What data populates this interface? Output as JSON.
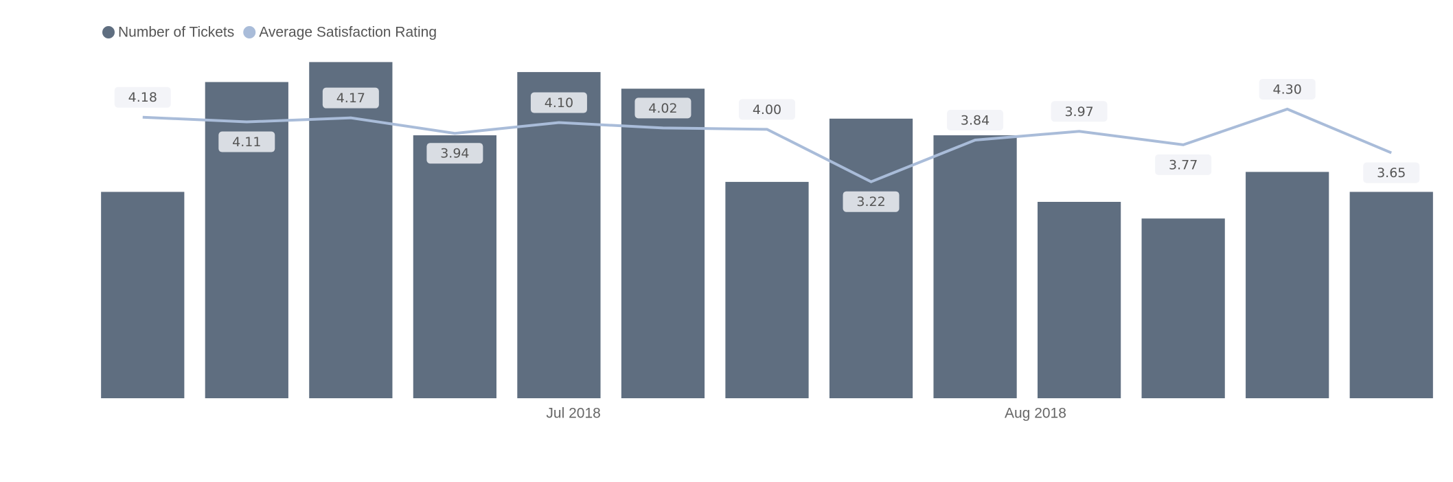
{
  "chart_data": {
    "type": "bar-line",
    "x": [
      null,
      null,
      null,
      null,
      null,
      null,
      null,
      null,
      null,
      null,
      null,
      null,
      null
    ],
    "xlim": [
      -0.5,
      12.5
    ],
    "xticks": [
      {
        "value": 4.14,
        "label": "Jul 2018"
      },
      {
        "value": 8.58,
        "label": "Aug 2018"
      }
    ],
    "ylim": [
      0,
      101
    ],
    "y2lim": [
      0,
      5
    ],
    "legend": "top-left",
    "series": [
      {
        "name": "Number of Tickets",
        "type": "bar",
        "color": "#5f6e80",
        "values": [
          62,
          95,
          101,
          79,
          98,
          93,
          65,
          84,
          79,
          59,
          54,
          68,
          62
        ]
      },
      {
        "name": "Average Satisfaction Rating",
        "type": "line",
        "axis": "y2",
        "color": "#a9bcd9",
        "values": [
          4.18,
          4.11,
          4.17,
          3.94,
          4.1,
          4.02,
          4.0,
          3.22,
          3.84,
          3.97,
          3.77,
          4.3,
          3.65
        ],
        "value_labels": [
          "4.18",
          "4.11",
          "4.17",
          "3.94",
          "4.10",
          "4.02",
          "4.00",
          "3.22",
          "3.84",
          "3.97",
          "3.77",
          "4.30",
          "3.65"
        ]
      }
    ]
  }
}
